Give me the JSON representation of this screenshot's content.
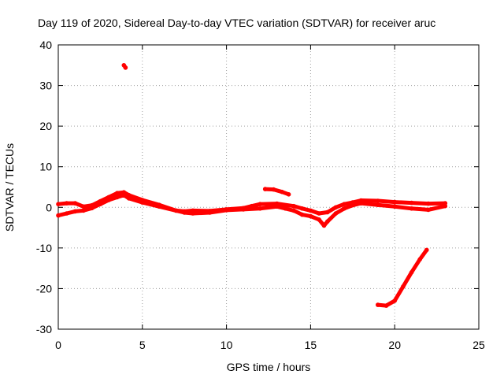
{
  "chart_data": {
    "type": "scatter",
    "title": "Day 119 of 2020, Sidereal Day-to-day VTEC variation (SDTVAR) for receiver aruc",
    "xlabel": "GPS time / hours",
    "ylabel": "SDTVAR / TECUs",
    "xlim": [
      0,
      25
    ],
    "ylim": [
      -30,
      40
    ],
    "xticks": [
      "0",
      "5",
      "10",
      "15",
      "20",
      "25"
    ],
    "xtick_values": [
      0,
      5,
      10,
      15,
      20,
      25
    ],
    "yticks": [
      "40",
      "30",
      "20",
      "10",
      "0",
      "-10",
      "-20",
      "-30"
    ],
    "ytick_values": [
      40,
      30,
      20,
      10,
      0,
      -10,
      -20,
      -30
    ],
    "grid": true,
    "color": "#ff0000",
    "series": [
      {
        "name": "upper-band",
        "x": [
          0.0,
          0.5,
          1.0,
          1.5,
          2.0,
          2.5,
          3.0,
          3.5,
          3.9,
          4.2,
          5.0,
          6.0,
          7.0,
          7.5,
          8.0,
          9.0,
          10.0,
          11.0,
          11.5,
          12.0,
          13.0,
          14.0,
          14.5,
          15.0,
          15.5,
          16.0,
          16.5,
          17.0,
          17.5,
          18.0,
          19.0,
          20.0,
          21.0,
          22.0,
          23.0
        ],
        "y": [
          0.8,
          1.0,
          1.0,
          0.2,
          0.5,
          1.5,
          2.5,
          3.5,
          3.7,
          3.0,
          1.8,
          0.6,
          -0.8,
          -1.0,
          -0.8,
          -0.9,
          -0.5,
          -0.2,
          0.3,
          0.8,
          0.9,
          0.3,
          -0.3,
          -0.8,
          -1.5,
          -1.2,
          0.0,
          0.8,
          1.2,
          1.7,
          1.6,
          1.3,
          1.1,
          0.9,
          1.0
        ]
      },
      {
        "name": "lower-band",
        "x": [
          0.0,
          0.5,
          1.0,
          1.5,
          2.0,
          2.5,
          3.0,
          3.5,
          3.9,
          4.2,
          5.0,
          6.0,
          7.0,
          7.5,
          8.0,
          9.0,
          10.0,
          11.0,
          12.0,
          13.0,
          13.5,
          14.0,
          14.5,
          15.0,
          15.5,
          15.8,
          16.0,
          16.5,
          17.0,
          17.5,
          18.0,
          19.0,
          20.0,
          21.0,
          22.0,
          23.0
        ],
        "y": [
          -2.0,
          -1.5,
          -1.0,
          -0.8,
          -0.2,
          0.8,
          1.8,
          2.5,
          3.0,
          2.2,
          1.2,
          0.2,
          -0.8,
          -1.3,
          -1.5,
          -1.3,
          -0.7,
          -0.5,
          -0.3,
          0.2,
          -0.3,
          -0.8,
          -1.8,
          -2.2,
          -3.0,
          -4.5,
          -3.5,
          -1.5,
          -0.3,
          0.5,
          1.0,
          0.6,
          0.2,
          -0.3,
          -0.6,
          0.3
        ]
      },
      {
        "name": "arc-12-14",
        "x": [
          12.3,
          12.8,
          13.3,
          13.7
        ],
        "y": [
          4.5,
          4.4,
          3.8,
          3.2
        ]
      },
      {
        "name": "outlier",
        "x": [
          3.9,
          4.0
        ],
        "y": [
          35.0,
          34.4
        ]
      },
      {
        "name": "recovery",
        "x": [
          19.0,
          19.5,
          20.0,
          20.5,
          21.0,
          21.5,
          21.9
        ],
        "y": [
          -24.0,
          -24.2,
          -23.0,
          -19.5,
          -16.0,
          -12.8,
          -10.5
        ]
      }
    ]
  }
}
